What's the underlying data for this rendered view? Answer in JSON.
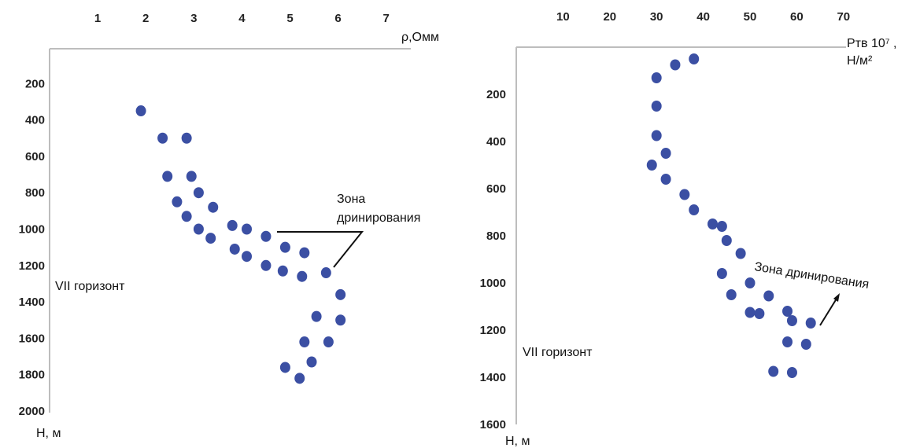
{
  "chart_data": [
    {
      "type": "scatter",
      "x_ticks": [
        "1",
        "2",
        "3",
        "4",
        "5",
        "6",
        "7"
      ],
      "y_ticks": [
        "200",
        "400",
        "600",
        "800",
        "1000",
        "1200",
        "1400",
        "1600",
        "1800",
        "2000"
      ],
      "xlabel": "ρ,Омм",
      "ylabel": "Н, м",
      "xlim": [
        0,
        7
      ],
      "ylim": [
        2000,
        0
      ],
      "x_axis_position": "top",
      "grid": false,
      "color": "#3b4fa3",
      "horizon_label": "VII горизонт",
      "annotation": [
        "Зона",
        "дринирования"
      ],
      "points": [
        [
          1.9,
          350
        ],
        [
          2.35,
          500
        ],
        [
          2.85,
          500
        ],
        [
          2.45,
          710
        ],
        [
          2.95,
          710
        ],
        [
          2.65,
          850
        ],
        [
          3.1,
          800
        ],
        [
          3.4,
          880
        ],
        [
          2.85,
          930
        ],
        [
          3.1,
          1000
        ],
        [
          3.35,
          1050
        ],
        [
          3.8,
          980
        ],
        [
          4.1,
          1000
        ],
        [
          4.5,
          1040
        ],
        [
          3.85,
          1110
        ],
        [
          4.1,
          1150
        ],
        [
          4.5,
          1200
        ],
        [
          4.9,
          1100
        ],
        [
          4.85,
          1230
        ],
        [
          5.3,
          1130
        ],
        [
          5.25,
          1260
        ],
        [
          5.75,
          1240
        ],
        [
          6.05,
          1360
        ],
        [
          5.55,
          1480
        ],
        [
          6.05,
          1500
        ],
        [
          5.3,
          1620
        ],
        [
          5.8,
          1620
        ],
        [
          5.45,
          1730
        ],
        [
          4.9,
          1760
        ],
        [
          5.2,
          1820
        ]
      ]
    },
    {
      "type": "scatter",
      "x_ticks": [
        "10",
        "20",
        "30",
        "40",
        "50",
        "60",
        "70"
      ],
      "y_ticks": [
        "200",
        "400",
        "600",
        "800",
        "1000",
        "1200",
        "1400",
        "1600"
      ],
      "xlabel": "Ртв 10⁷ ,",
      "xlabel_unit": "Н/м²",
      "ylabel": "Н, м",
      "xlim": [
        0,
        70
      ],
      "ylim": [
        1600,
        0
      ],
      "x_axis_position": "top",
      "grid": false,
      "color": "#3b4fa3",
      "horizon_label": "VII горизонт",
      "annotation": "Зона дринирования",
      "points": [
        [
          38,
          50
        ],
        [
          34,
          75
        ],
        [
          30,
          130
        ],
        [
          30,
          250
        ],
        [
          30,
          375
        ],
        [
          32,
          450
        ],
        [
          29,
          500
        ],
        [
          32,
          560
        ],
        [
          36,
          625
        ],
        [
          38,
          690
        ],
        [
          42,
          750
        ],
        [
          44,
          760
        ],
        [
          45,
          820
        ],
        [
          48,
          875
        ],
        [
          44,
          960
        ],
        [
          50,
          1000
        ],
        [
          46,
          1050
        ],
        [
          54,
          1055
        ],
        [
          50,
          1125
        ],
        [
          52,
          1130
        ],
        [
          58,
          1120
        ],
        [
          59,
          1160
        ],
        [
          63,
          1170
        ],
        [
          58,
          1250
        ],
        [
          62,
          1260
        ],
        [
          55,
          1375
        ],
        [
          59,
          1380
        ]
      ]
    }
  ]
}
